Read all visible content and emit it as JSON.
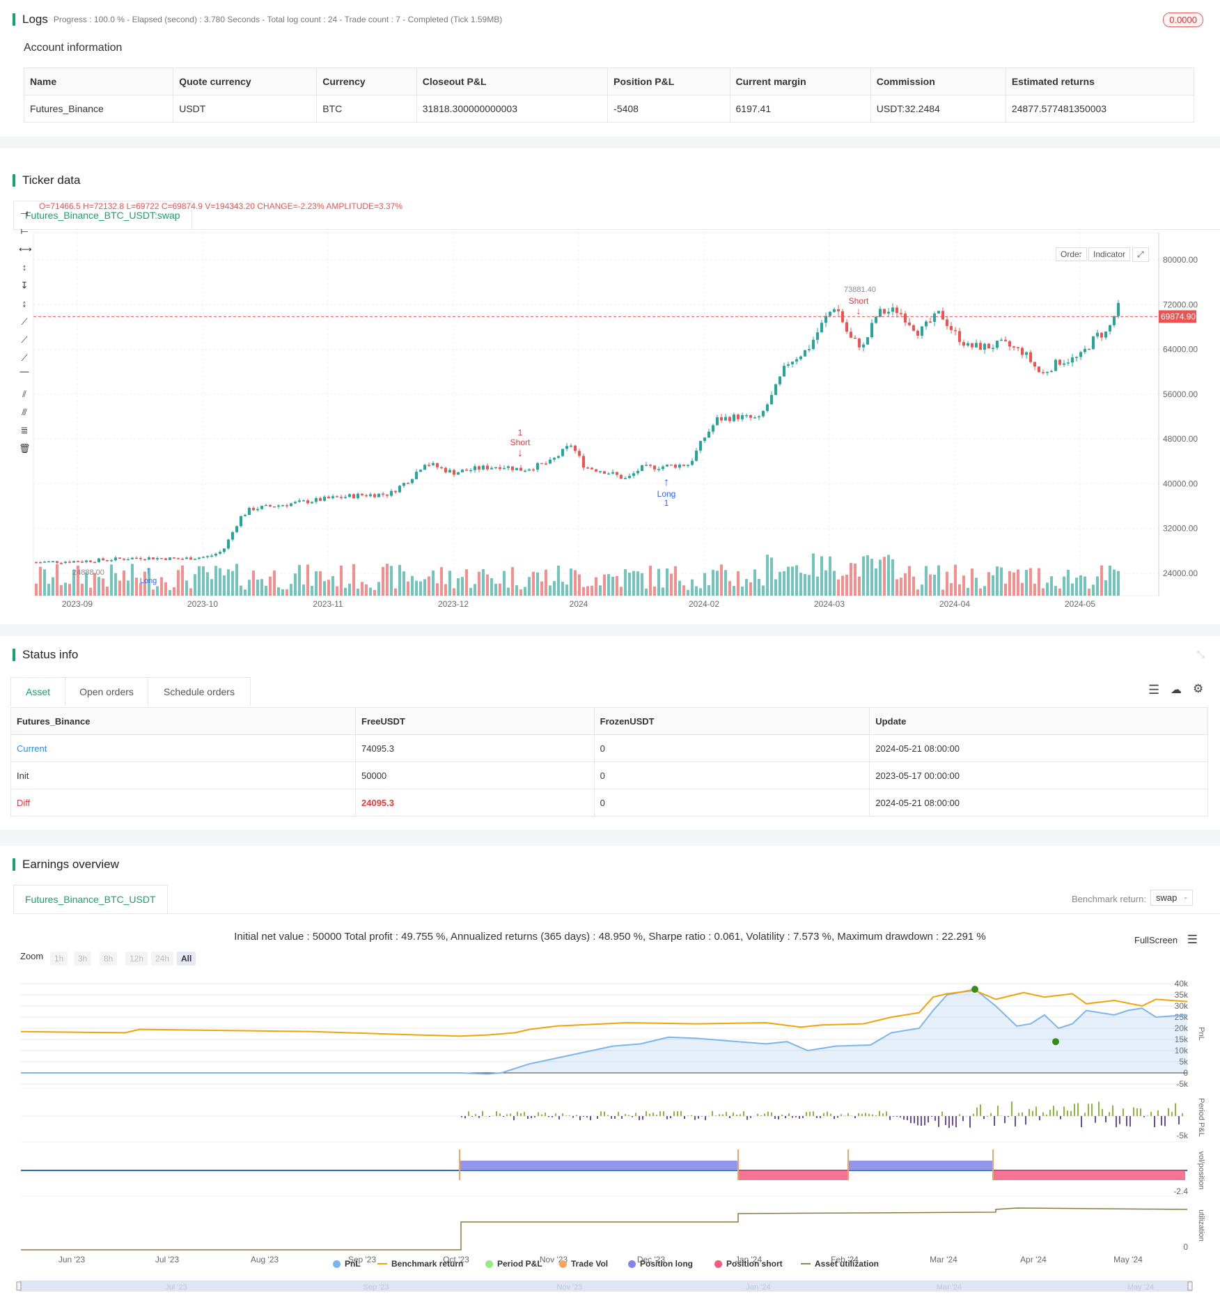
{
  "logs": {
    "title": "Logs",
    "subtitle": "Progress : 100.0 % - Elapsed (second) : 3.780  Seconds - Total log count : 24 - Trade count : 7 - Completed (Tick 1.59MB)",
    "badge": "0.0000"
  },
  "account": {
    "title": "Account information",
    "headers": [
      "Name",
      "Quote currency",
      "Currency",
      "Closeout P&L",
      "Position P&L",
      "Current margin",
      "Commission",
      "Estimated returns"
    ],
    "row": [
      "Futures_Binance",
      "USDT",
      "BTC",
      "31818.300000000003",
      "-5408",
      "6197.41",
      "USDT:32.2484",
      "24877.577481350003"
    ]
  },
  "ticker": {
    "title": "Ticker data",
    "tab": "Futures_Binance_BTC_USDT:swap",
    "ohlc": {
      "o": "O=71466.5",
      "h": "H=72132.8",
      "l": "L=69722",
      "c": "C=69874.9",
      "v": "V=194343.20",
      "change": "CHANGE=-2.23%",
      "amplitude": "AMPLITUDE=3.37%"
    },
    "buttons": {
      "order": "Order",
      "indicator": "Indicator"
    },
    "price_tag": "69874.90",
    "high_marker": "73881.40",
    "low_marker": "24888.00",
    "annotations": {
      "short1_num": "1",
      "short1": "Short",
      "long1": "Long",
      "long1_num": "1",
      "short2": "Short",
      "long0": "Long"
    },
    "y_ticks": [
      "80000.00",
      "72000.00",
      "64000.00",
      "56000.00",
      "48000.00",
      "40000.00",
      "32000.00",
      "24000.00"
    ],
    "x_ticks": [
      "2023-09",
      "2023-10",
      "2023-11",
      "2023-12",
      "2024",
      "2024-02",
      "2024-03",
      "2024-04",
      "2024-05"
    ],
    "colors": {
      "up": "#26a69a",
      "down": "#ef5350"
    }
  },
  "status": {
    "title": "Status info",
    "tabs": [
      "Asset",
      "Open orders",
      "Schedule orders"
    ],
    "headers": [
      "Futures_Binance",
      "FreeUSDT",
      "FrozenUSDT",
      "Update"
    ],
    "rows": [
      [
        "Current",
        "74095.3",
        "0",
        "2024-05-21 08:00:00"
      ],
      [
        "Init",
        "50000",
        "0",
        "2023-05-17 00:00:00"
      ],
      [
        "Diff",
        "24095.3",
        "0",
        "2024-05-21 08:00:00"
      ]
    ]
  },
  "earnings": {
    "title": "Earnings overview",
    "tab": "Futures_Binance_BTC_USDT",
    "benchmark_label": "Benchmark return:",
    "benchmark_value": "swap",
    "summary": "Initial net value : 50000 Total profit : 49.755 %, Annualized returns (365 days) : 48.950 %, Sharpe ratio : 0.061, Volatility : 7.573 %, Maximum drawdown : 22.291 %",
    "fullscreen": "FullScreen",
    "zoom_label": "Zoom",
    "zoom_buttons": [
      "1h",
      "3h",
      "8h",
      "12h",
      "24h",
      "All"
    ],
    "pnl_ticks": [
      "40k",
      "35k",
      "30k",
      "25k",
      "20k",
      "15k",
      "10k",
      "5k",
      "0",
      "-5k"
    ],
    "period_ticks": [
      "-5k"
    ],
    "pos_ticks": [
      "-2.4"
    ],
    "util_ticks": [
      "0"
    ],
    "axis_titles": [
      "PnL",
      "Period P&L",
      "vol/position",
      "utilization"
    ],
    "x_ticks": [
      "Jun '23",
      "Jul '23",
      "Aug '23",
      "Sep '23",
      "Oct '23",
      "Nov '23",
      "Dec '23",
      "Jan '24",
      "Feb '24",
      "Mar '24",
      "Apr '24",
      "May '24"
    ],
    "nav_ticks": [
      "Jul '23",
      "Sep '23",
      "Nov '23",
      "Jan '24",
      "Mar '24",
      "May '24"
    ],
    "legend": [
      {
        "label": "PnL",
        "color": "#7cb5ec"
      },
      {
        "label": "Benchmark return",
        "color": "#f0a30a"
      },
      {
        "label": "Period P&L",
        "color": "#90ed7d"
      },
      {
        "label": "Trade Vol",
        "color": "#f7a35c"
      },
      {
        "label": "Position long",
        "color": "#8085e9"
      },
      {
        "label": "Position short",
        "color": "#f15c80"
      },
      {
        "label": "Asset utilization",
        "color": "#8d8d4a"
      }
    ]
  }
}
